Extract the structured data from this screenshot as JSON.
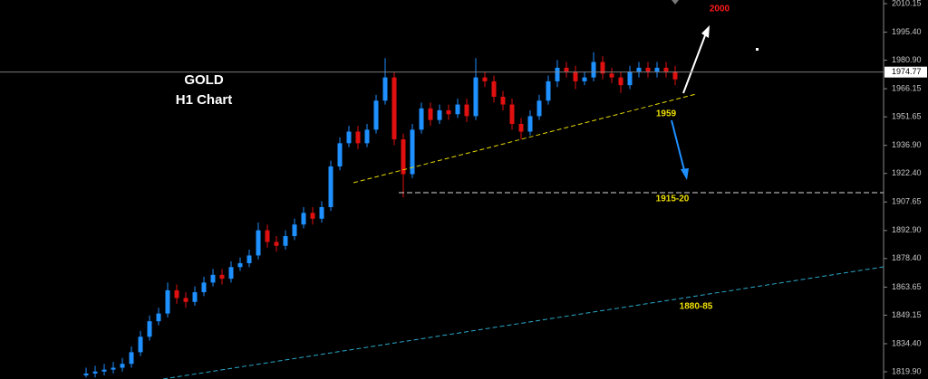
{
  "chart_data": {
    "type": "candlestick",
    "title": "GOLD",
    "subtitle": "H1 Chart",
    "annotations": [
      "2000",
      "1959",
      "1915-20",
      "1880-85"
    ],
    "last_price": 1974.77,
    "up_color": "#1e90ff",
    "down_color": "#e01010",
    "ylim": [
      1816.16,
      2012.02
    ],
    "yticks": [
      2010.15,
      {
        "value": 1995.4,
        "label": "1995.40"
      },
      {
        "value": 1980.9,
        "label": "1980.90"
      },
      1966.15,
      1951.65,
      {
        "value": 1936.9,
        "label": "1936.90"
      },
      {
        "value": 1922.4,
        "label": "1922.40"
      },
      1907.65,
      {
        "value": 1892.9,
        "label": "1892.90"
      },
      {
        "value": 1878.4,
        "label": "1878.40"
      },
      1863.65,
      1849.15,
      {
        "value": 1834.4,
        "label": "1834.40"
      },
      {
        "value": 1819.9,
        "label": "1819.90"
      }
    ],
    "open": [
      1818,
      1819,
      1820,
      1821,
      1822,
      1824,
      1830,
      1838,
      1846,
      1850,
      1862,
      1858,
      1856,
      1861,
      1866,
      1870,
      1868,
      1874,
      1876,
      1880,
      1893,
      1887,
      1885,
      1890,
      1896,
      1902,
      1899,
      1905,
      1926,
      1938,
      1944,
      1938,
      1945,
      1960,
      1972,
      1940,
      1922,
      1945,
      1956,
      1950,
      1955,
      1953,
      1958,
      1952,
      1972,
      1970,
      1962,
      1958,
      1948,
      1944,
      1952,
      1960,
      1970,
      1977,
      1975,
      1970,
      1972,
      1980,
      1974,
      1972,
      1968,
      1975,
      1977,
      1975,
      1977,
      1975
    ],
    "high": [
      1822,
      1823,
      1824,
      1825,
      1827,
      1833,
      1841,
      1849,
      1853,
      1866,
      1865,
      1861,
      1864,
      1869,
      1873,
      1873,
      1877,
      1879,
      1883,
      1897,
      1896,
      1890,
      1893,
      1899,
      1905,
      1905,
      1908,
      1929,
      1941,
      1947,
      1947,
      1948,
      1963,
      1982,
      1975,
      1943,
      1948,
      1959,
      1959,
      1958,
      1958,
      1961,
      1961,
      1982,
      1975,
      1973,
      1965,
      1961,
      1951,
      1955,
      1963,
      1973,
      1981,
      1980,
      1978,
      1975,
      1985,
      1983,
      1977,
      1975,
      1978,
      1980,
      1980,
      1980,
      1980,
      1978
    ],
    "low": [
      1817,
      1817,
      1818,
      1819,
      1820,
      1822,
      1828,
      1836,
      1844,
      1848,
      1855,
      1853,
      1854,
      1859,
      1864,
      1865,
      1866,
      1872,
      1874,
      1878,
      1884,
      1882,
      1883,
      1888,
      1894,
      1896,
      1897,
      1903,
      1924,
      1936,
      1935,
      1936,
      1943,
      1958,
      1937,
      1910,
      1920,
      1943,
      1947,
      1948,
      1950,
      1951,
      1949,
      1950,
      1967,
      1959,
      1955,
      1945,
      1940,
      1942,
      1950,
      1958,
      1967,
      1972,
      1966,
      1968,
      1970,
      1971,
      1969,
      1964,
      1966,
      1972,
      1972,
      1972,
      1972,
      1968
    ],
    "close": [
      1819,
      1820,
      1821,
      1822,
      1824,
      1830,
      1838,
      1846,
      1850,
      1862,
      1858,
      1856,
      1861,
      1866,
      1870,
      1868,
      1874,
      1876,
      1880,
      1893,
      1887,
      1885,
      1890,
      1896,
      1902,
      1899,
      1905,
      1926,
      1938,
      1944,
      1938,
      1945,
      1960,
      1972,
      1940,
      1922,
      1945,
      1956,
      1950,
      1955,
      1953,
      1958,
      1952,
      1972,
      1970,
      1962,
      1958,
      1948,
      1944,
      1952,
      1960,
      1970,
      1977,
      1975,
      1970,
      1972,
      1980,
      1974,
      1972,
      1968,
      1975,
      1977,
      1975,
      1977,
      1975,
      1971
    ]
  }
}
